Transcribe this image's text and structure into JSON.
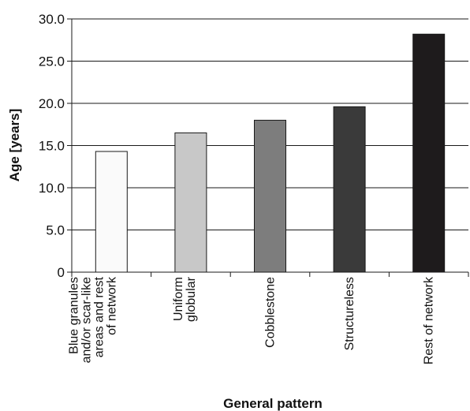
{
  "chart_data": {
    "type": "bar",
    "xlabel": "General pattern",
    "ylabel": "Age [years]",
    "ylim": [
      0,
      30
    ],
    "yticks": [
      "0",
      "5.0",
      "10.0",
      "15.0",
      "20.0",
      "25.0",
      "30.0"
    ],
    "grid": "horizontal",
    "categories": [
      [
        "Blue granules",
        "and/or scar-like",
        "areas and rest",
        "of network"
      ],
      [
        "Uniform",
        "globular"
      ],
      [
        "Cobblestone"
      ],
      [
        "Structureless"
      ],
      [
        "Rest of network"
      ]
    ],
    "values": [
      14.3,
      16.5,
      18.0,
      19.6,
      28.2
    ],
    "colors": [
      "#fafafa",
      "#c8c8c8",
      "#7d7d7d",
      "#3a3a3a",
      "#1e1b1c"
    ]
  }
}
